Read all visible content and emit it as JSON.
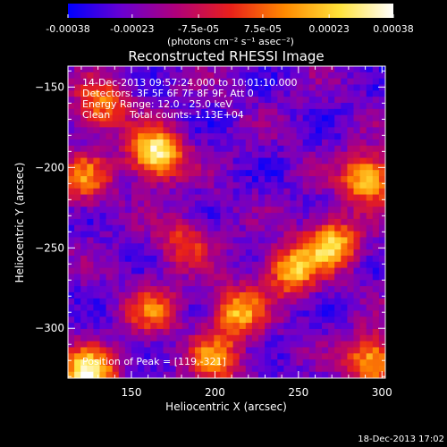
{
  "chart_data": {
    "type": "heatmap",
    "title": "Reconstructed RHESSI Image",
    "xlabel": "Heliocentric X (arcsec)",
    "ylabel": "Heliocentric Y (arcsec)",
    "xlim": [
      112,
      302
    ],
    "ylim": [
      -331,
      -137
    ],
    "x_ticks": [
      150,
      200,
      250,
      300
    ],
    "y_ticks": [
      -150,
      -200,
      -250,
      -300
    ],
    "colorbar": {
      "ticks": [
        "-0.00038",
        "-0.00023",
        "-7.5e-05",
        "7.5e-05",
        "0.00023",
        "0.00038"
      ],
      "unit_label": "(photons cm⁻² s⁻¹ asec⁻²)",
      "range": [
        -0.00038,
        0.00038
      ],
      "colors": [
        "#0000ff",
        "#6a00d0",
        "#b0007a",
        "#e8201a",
        "#ff8a00",
        "#ffe23a",
        "#ffffff"
      ]
    },
    "annotations": {
      "time_range": "14-Dec-2013 09:57:24.000 to 10:01:10.000",
      "detectors": "Detectors: 3F 5F 6F 7F 8F 9F, Att 0",
      "energy_range": "Energy Range: 12.0 - 25.0 keV",
      "method": "Clean",
      "total_counts": "Total counts: 1.13E+04",
      "peak_position": "Position of Peak = [119,-321]"
    },
    "bright_sources": [
      {
        "x": 163,
        "y": -190,
        "intensity": 1.0
      },
      {
        "x": 122,
        "y": -327,
        "intensity": 1.0
      },
      {
        "x": 290,
        "y": -205,
        "intensity": 0.85
      },
      {
        "x": 268,
        "y": -245,
        "intensity": 0.8
      },
      {
        "x": 244,
        "y": -262,
        "intensity": 0.75
      },
      {
        "x": 212,
        "y": -288,
        "intensity": 0.7
      },
      {
        "x": 292,
        "y": -318,
        "intensity": 0.75
      },
      {
        "x": 198,
        "y": -318,
        "intensity": 0.6
      },
      {
        "x": 130,
        "y": -160,
        "intensity": 0.6
      },
      {
        "x": 120,
        "y": -205,
        "intensity": 0.55
      },
      {
        "x": 180,
        "y": -245,
        "intensity": 0.45
      },
      {
        "x": 160,
        "y": -287,
        "intensity": 0.5
      }
    ]
  },
  "timestamp": "18-Dec-2013 17:02"
}
